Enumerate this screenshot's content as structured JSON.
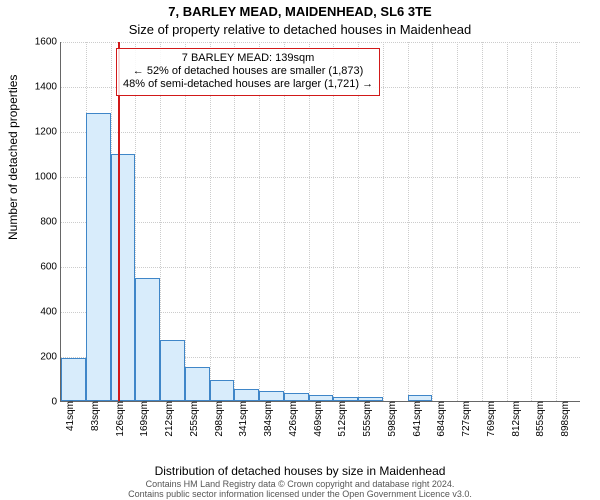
{
  "header": {
    "line1": "7, BARLEY MEAD, MAIDENHEAD, SL6 3TE",
    "line2": "Size of property relative to detached houses in Maidenhead",
    "fontsize_line1": 13,
    "fontsize_line2": 13,
    "color": "#000000"
  },
  "axes": {
    "ylabel": "Number of detached properties",
    "xlabel": "Distribution of detached houses by size in Maidenhead",
    "label_fontsize": 12,
    "tick_fontsize": 10,
    "tick_color": "#000000",
    "grid_color": "#cccccc"
  },
  "chart": {
    "type": "histogram",
    "ylim": [
      0,
      1600
    ],
    "ytick_step": 200,
    "yticks": [
      0,
      200,
      400,
      600,
      800,
      1000,
      1200,
      1400,
      1600
    ],
    "categories": [
      "41sqm",
      "83sqm",
      "126sqm",
      "169sqm",
      "212sqm",
      "255sqm",
      "298sqm",
      "341sqm",
      "384sqm",
      "426sqm",
      "469sqm",
      "512sqm",
      "555sqm",
      "598sqm",
      "641sqm",
      "684sqm",
      "727sqm",
      "769sqm",
      "812sqm",
      "855sqm",
      "898sqm"
    ],
    "values": [
      190,
      1280,
      1100,
      545,
      270,
      150,
      95,
      55,
      45,
      35,
      25,
      20,
      20,
      0,
      25,
      0,
      0,
      0,
      0,
      0,
      0
    ],
    "bar_fill": "#d8ecfb",
    "bar_border": "#3f86c8",
    "background_color": "#ffffff"
  },
  "marker": {
    "position_category_index": 2,
    "position_fraction_within": 0.32,
    "color": "#d11919"
  },
  "callout": {
    "border_color": "#d11919",
    "fontsize": 11,
    "line1": "7 BARLEY MEAD: 139sqm",
    "line2": "← 52% of detached houses are smaller (1,873)",
    "line3": "48% of semi-detached houses are larger (1,721) →"
  },
  "license": {
    "line1": "Contains HM Land Registry data © Crown copyright and database right 2024.",
    "line2": "Contains public sector information licensed under the Open Government Licence v3.0.",
    "fontsize": 9,
    "color": "#555555"
  }
}
